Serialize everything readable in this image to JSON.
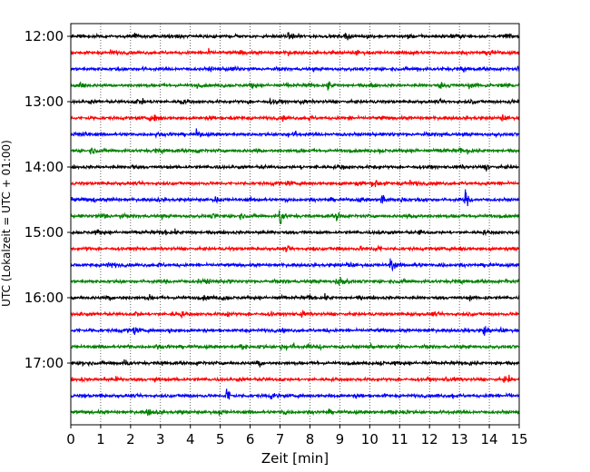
{
  "chart_data": {
    "type": "line",
    "subtype": "helicorder",
    "xlabel": "Zeit  [min]",
    "ylabel": "UTC (Lokalzeit = UTC + 01:00)",
    "xlim": [
      0,
      15
    ],
    "x_ticks": [
      "0",
      "1",
      "2",
      "3",
      "4",
      "5",
      "6",
      "7",
      "8",
      "9",
      "10",
      "11",
      "12",
      "13",
      "14",
      "15"
    ],
    "y_tick_labels": [
      "12:00",
      "13:00",
      "14:00",
      "15:00",
      "16:00",
      "17:00"
    ],
    "trace_interval_minutes": 15,
    "first_trace_start": "12:00",
    "last_trace_start": "17:45",
    "trace_colors_cycle": [
      "#000000",
      "#ff0000",
      "#0000ff",
      "#008000"
    ],
    "grid": "vertical dotted lines at each minute",
    "traces": [
      {
        "start": "12:00",
        "color": "#000000",
        "events": [
          {
            "minute": 9.2,
            "amplitude": 0.4
          }
        ]
      },
      {
        "start": "12:15",
        "color": "#ff0000",
        "events": [
          {
            "minute": 14.0,
            "amplitude": 0.3
          }
        ]
      },
      {
        "start": "12:30",
        "color": "#0000ff",
        "events": []
      },
      {
        "start": "12:45",
        "color": "#008000",
        "events": [
          {
            "minute": 0.3,
            "amplitude": 0.65
          },
          {
            "minute": 8.6,
            "amplitude": 0.6
          }
        ]
      },
      {
        "start": "13:00",
        "color": "#000000",
        "events": [
          {
            "minute": 2.2,
            "amplitude": 0.35
          }
        ]
      },
      {
        "start": "13:15",
        "color": "#ff0000",
        "events": []
      },
      {
        "start": "13:30",
        "color": "#0000ff",
        "events": [
          {
            "minute": 4.2,
            "amplitude": 0.4
          }
        ]
      },
      {
        "start": "13:45",
        "color": "#008000",
        "events": []
      },
      {
        "start": "14:00",
        "color": "#000000",
        "events": []
      },
      {
        "start": "14:15",
        "color": "#ff0000",
        "events": [
          {
            "minute": 10.2,
            "amplitude": 0.5
          }
        ]
      },
      {
        "start": "14:30",
        "color": "#0000ff",
        "events": [
          {
            "minute": 4.8,
            "amplitude": 0.45
          },
          {
            "minute": 10.4,
            "amplitude": 1.1
          },
          {
            "minute": 13.2,
            "amplitude": 1.1
          }
        ]
      },
      {
        "start": "14:45",
        "color": "#008000",
        "events": [
          {
            "minute": 1.0,
            "amplitude": 0.35
          },
          {
            "minute": 7.0,
            "amplitude": 1.3
          },
          {
            "minute": 8.9,
            "amplitude": 0.55
          }
        ]
      },
      {
        "start": "15:00",
        "color": "#000000",
        "events": []
      },
      {
        "start": "15:15",
        "color": "#ff0000",
        "events": []
      },
      {
        "start": "15:30",
        "color": "#0000ff",
        "events": [
          {
            "minute": 10.7,
            "amplitude": 1.1
          }
        ]
      },
      {
        "start": "15:45",
        "color": "#008000",
        "events": [
          {
            "minute": 4.5,
            "amplitude": 0.3
          },
          {
            "minute": 9.0,
            "amplitude": 0.6
          }
        ]
      },
      {
        "start": "16:00",
        "color": "#000000",
        "events": [
          {
            "minute": 1.2,
            "amplitude": 0.5
          }
        ]
      },
      {
        "start": "16:15",
        "color": "#ff0000",
        "events": [
          {
            "minute": 5.2,
            "amplitude": 0.4
          }
        ]
      },
      {
        "start": "16:30",
        "color": "#0000ff",
        "events": [
          {
            "minute": 2.1,
            "amplitude": 0.5
          },
          {
            "minute": 13.8,
            "amplitude": 0.4
          }
        ]
      },
      {
        "start": "16:45",
        "color": "#008000",
        "events": [
          {
            "minute": 5.7,
            "amplitude": 0.5
          }
        ]
      },
      {
        "start": "17:00",
        "color": "#000000",
        "events": [
          {
            "minute": 0.4,
            "amplitude": 0.4
          }
        ]
      },
      {
        "start": "17:15",
        "color": "#ff0000",
        "events": [
          {
            "minute": 2.8,
            "amplitude": 0.3
          }
        ]
      },
      {
        "start": "17:30",
        "color": "#0000ff",
        "events": [
          {
            "minute": 5.2,
            "amplitude": 1.3
          }
        ]
      },
      {
        "start": "17:45",
        "color": "#008000",
        "events": []
      }
    ]
  }
}
